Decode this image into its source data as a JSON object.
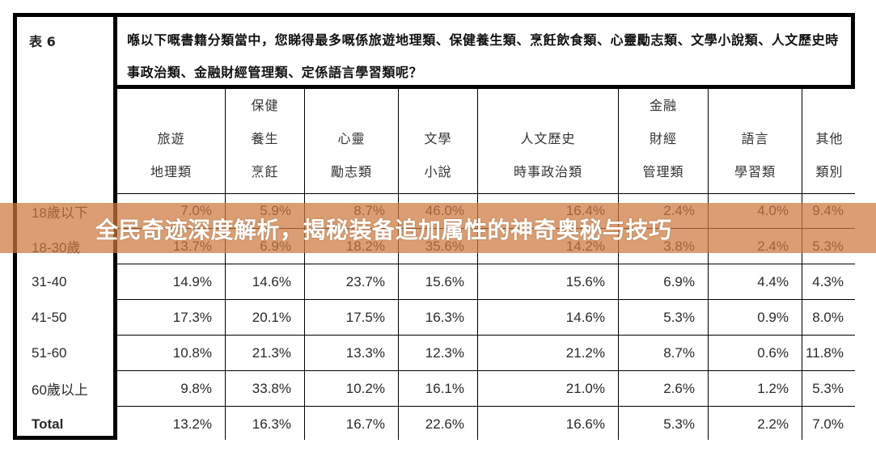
{
  "table": {
    "label": "表 6",
    "question": "喺以下嘅書籍分類當中，您睇得最多嘅係旅遊地理類、保健養生類、烹飪飲食類、心靈勵志類、文學小說類、人文歷史時事政治類、金融財經管理類、定係語言學習類呢？",
    "columns": [
      {
        "lines": [
          "旅遊",
          "地理類"
        ]
      },
      {
        "lines": [
          "保健",
          "養生",
          "烹飪"
        ]
      },
      {
        "lines": [
          "心靈",
          "勵志類"
        ]
      },
      {
        "lines": [
          "文學",
          "小說"
        ]
      },
      {
        "lines": [
          "人文歷史",
          "時事政治類"
        ]
      },
      {
        "lines": [
          "金融",
          "財經",
          "管理類"
        ]
      },
      {
        "lines": [
          "語言",
          "學習類"
        ]
      },
      {
        "lines": [
          "其他",
          "類別"
        ]
      }
    ],
    "rows": [
      {
        "label": "18歲以下",
        "values": [
          "7.0%",
          "5.9%",
          "8.7%",
          "46.0%",
          "16.4%",
          "2.4%",
          "4.0%",
          "9.4%"
        ]
      },
      {
        "label": "18-30歲",
        "values": [
          "13.7%",
          "6.9%",
          "18.2%",
          "35.6%",
          "14.2%",
          "3.8%",
          "2.4%",
          "5.3%"
        ]
      },
      {
        "label": "31-40",
        "values": [
          "14.9%",
          "14.6%",
          "23.7%",
          "15.6%",
          "15.6%",
          "6.9%",
          "4.4%",
          "4.3%"
        ]
      },
      {
        "label": "41-50",
        "values": [
          "17.3%",
          "20.1%",
          "17.5%",
          "16.3%",
          "14.6%",
          "5.3%",
          "0.9%",
          "8.0%"
        ]
      },
      {
        "label": "51-60",
        "values": [
          "10.8%",
          "21.3%",
          "13.3%",
          "12.3%",
          "21.2%",
          "8.7%",
          "0.6%",
          "11.8%"
        ]
      },
      {
        "label": "60歲以上",
        "values": [
          "9.8%",
          "33.8%",
          "10.2%",
          "16.1%",
          "21.0%",
          "2.6%",
          "1.2%",
          "5.3%"
        ]
      },
      {
        "label": "Total",
        "values": [
          "13.2%",
          "16.3%",
          "16.7%",
          "22.6%",
          "16.6%",
          "5.3%",
          "2.2%",
          "7.0%"
        ]
      }
    ]
  },
  "banner": {
    "title": "全民奇迹深度解析，揭秘装备追加属性的神奇奥秘与技巧",
    "color": "#d99a6c"
  }
}
